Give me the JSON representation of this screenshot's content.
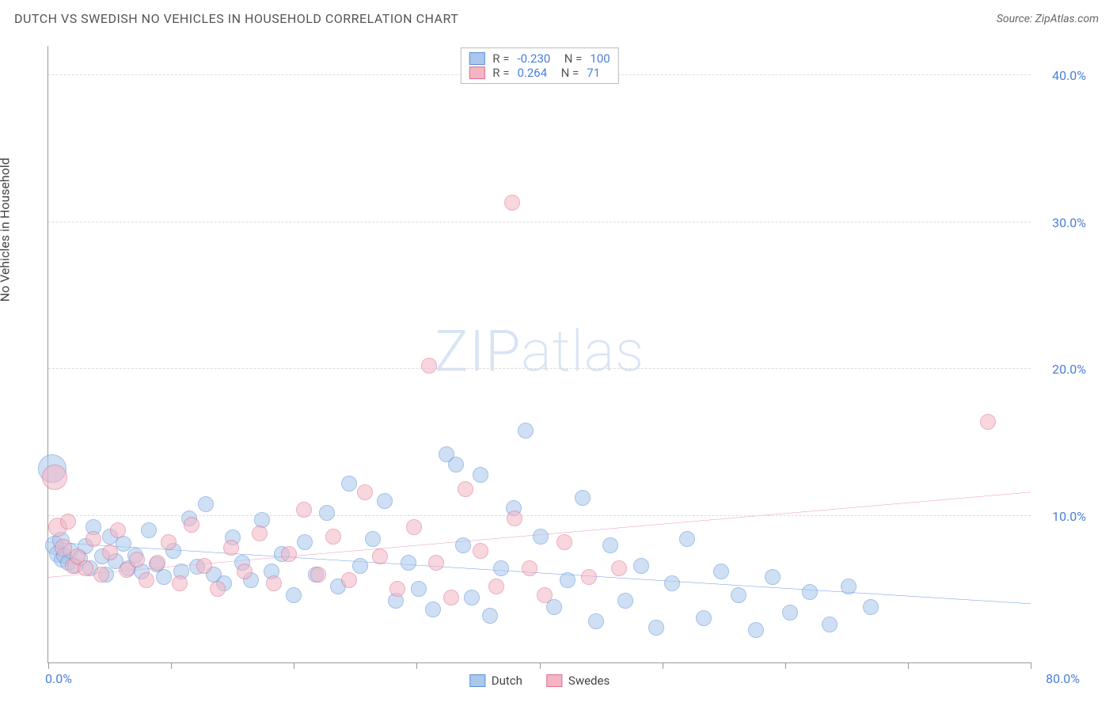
{
  "title": "DUTCH VS SWEDISH NO VEHICLES IN HOUSEHOLD CORRELATION CHART",
  "source_label": "Source: ZipAtlas.com",
  "y_axis_label": "No Vehicles in Household",
  "watermark": "ZIPatlas",
  "chart": {
    "type": "scatter",
    "xlim": [
      0,
      80
    ],
    "ylim": [
      0,
      42
    ],
    "x_ticks": [
      0,
      10,
      20,
      30,
      40,
      50,
      60,
      70,
      80
    ],
    "x_tick_labels": {
      "0": "0.0%",
      "80": "80.0%"
    },
    "y_ticks": [
      10,
      20,
      30,
      40
    ],
    "y_tick_labels": {
      "10": "10.0%",
      "20": "20.0%",
      "30": "30.0%",
      "40": "40.0%"
    },
    "background_color": "#ffffff",
    "grid_color": "#dddddd",
    "axis_color": "#999999",
    "tick_label_color": "#4a7fd8",
    "series": [
      {
        "name": "Dutch",
        "fill": "#a9c8ec",
        "stroke": "#5b8fd6",
        "fill_opacity": 0.55,
        "marker_radius": 10,
        "trend": {
          "x1": 0,
          "y1": 8.2,
          "x2": 80,
          "y2": 4.0,
          "color": "#2b6edc",
          "width": 2
        },
        "R": "-0.230",
        "N": "100",
        "points": [
          [
            0.3,
            13.2,
            18
          ],
          [
            0.5,
            8.0,
            12
          ],
          [
            0.8,
            7.4,
            11
          ],
          [
            1.0,
            8.3,
            11
          ],
          [
            1.1,
            7.0,
            10
          ],
          [
            1.3,
            7.3,
            10
          ],
          [
            1.6,
            6.8,
            10
          ],
          [
            1.8,
            7.6,
            10
          ],
          [
            2.2,
            6.6,
            10
          ],
          [
            2.6,
            7.1,
            10
          ],
          [
            3.0,
            7.9,
            10
          ],
          [
            3.4,
            6.4,
            10
          ],
          [
            3.7,
            9.2,
            10
          ],
          [
            4.4,
            7.2,
            10
          ],
          [
            4.7,
            6.0,
            10
          ],
          [
            5.0,
            8.6,
            10
          ],
          [
            5.5,
            6.9,
            10
          ],
          [
            6.1,
            8.1,
            10
          ],
          [
            6.5,
            6.4,
            10
          ],
          [
            7.1,
            7.3,
            10
          ],
          [
            7.6,
            6.2,
            10
          ],
          [
            8.2,
            9.0,
            10
          ],
          [
            8.8,
            6.7,
            10
          ],
          [
            9.4,
            5.8,
            10
          ],
          [
            10.2,
            7.6,
            10
          ],
          [
            10.8,
            6.2,
            10
          ],
          [
            11.5,
            9.8,
            10
          ],
          [
            12.1,
            6.5,
            10
          ],
          [
            12.8,
            10.8,
            10
          ],
          [
            13.5,
            6.0,
            10
          ],
          [
            14.3,
            5.4,
            10
          ],
          [
            15.0,
            8.5,
            10
          ],
          [
            15.8,
            6.8,
            10
          ],
          [
            16.5,
            5.6,
            10
          ],
          [
            17.4,
            9.7,
            10
          ],
          [
            18.2,
            6.2,
            10
          ],
          [
            19.0,
            7.4,
            10
          ],
          [
            20.0,
            4.6,
            10
          ],
          [
            20.9,
            8.2,
            10
          ],
          [
            21.8,
            6.0,
            10
          ],
          [
            22.7,
            10.2,
            10
          ],
          [
            23.6,
            5.2,
            10
          ],
          [
            24.5,
            12.2,
            10
          ],
          [
            25.4,
            6.6,
            10
          ],
          [
            26.4,
            8.4,
            10
          ],
          [
            27.4,
            11.0,
            10
          ],
          [
            28.3,
            4.2,
            10
          ],
          [
            29.3,
            6.8,
            10
          ],
          [
            30.2,
            5.0,
            10
          ],
          [
            31.3,
            3.6,
            10
          ],
          [
            32.4,
            14.2,
            10
          ],
          [
            33.2,
            13.5,
            10
          ],
          [
            33.8,
            8.0,
            10
          ],
          [
            34.5,
            4.4,
            10
          ],
          [
            35.2,
            12.8,
            10
          ],
          [
            36.0,
            3.2,
            10
          ],
          [
            36.9,
            6.4,
            10
          ],
          [
            37.9,
            10.5,
            10
          ],
          [
            38.9,
            15.8,
            10
          ],
          [
            40.1,
            8.6,
            10
          ],
          [
            41.2,
            3.8,
            10
          ],
          [
            42.3,
            5.6,
            10
          ],
          [
            43.5,
            11.2,
            10
          ],
          [
            44.6,
            2.8,
            10
          ],
          [
            45.8,
            8.0,
            10
          ],
          [
            47.0,
            4.2,
            10
          ],
          [
            48.3,
            6.6,
            10
          ],
          [
            49.5,
            2.4,
            10
          ],
          [
            50.8,
            5.4,
            10
          ],
          [
            52.0,
            8.4,
            10
          ],
          [
            53.4,
            3.0,
            10
          ],
          [
            54.8,
            6.2,
            10
          ],
          [
            56.2,
            4.6,
            10
          ],
          [
            57.6,
            2.2,
            10
          ],
          [
            59.0,
            5.8,
            10
          ],
          [
            60.4,
            3.4,
            10
          ],
          [
            62.0,
            4.8,
            10
          ],
          [
            63.6,
            2.6,
            10
          ],
          [
            65.2,
            5.2,
            10
          ],
          [
            67.0,
            3.8,
            10
          ]
        ]
      },
      {
        "name": "Swedes",
        "fill": "#f3b5c4",
        "stroke": "#df6f8f",
        "fill_opacity": 0.55,
        "marker_radius": 10,
        "trend": {
          "x1": 0,
          "y1": 5.8,
          "x2": 80,
          "y2": 11.6,
          "color": "#e86b8f",
          "width": 2
        },
        "R": "0.264",
        "N": "71",
        "points": [
          [
            0.5,
            12.6,
            16
          ],
          [
            0.8,
            9.2,
            12
          ],
          [
            1.2,
            7.8,
            11
          ],
          [
            1.6,
            9.6,
            10
          ],
          [
            2.0,
            6.6,
            10
          ],
          [
            2.4,
            7.2,
            10
          ],
          [
            3.0,
            6.4,
            10
          ],
          [
            3.7,
            8.4,
            10
          ],
          [
            4.3,
            6.0,
            10
          ],
          [
            5.0,
            7.5,
            10
          ],
          [
            5.7,
            9.0,
            10
          ],
          [
            6.4,
            6.3,
            10
          ],
          [
            7.2,
            7.0,
            10
          ],
          [
            8.0,
            5.6,
            10
          ],
          [
            8.9,
            6.8,
            10
          ],
          [
            9.8,
            8.2,
            10
          ],
          [
            10.7,
            5.4,
            10
          ],
          [
            11.7,
            9.4,
            10
          ],
          [
            12.7,
            6.6,
            10
          ],
          [
            13.8,
            5.0,
            10
          ],
          [
            14.9,
            7.8,
            10
          ],
          [
            16.0,
            6.2,
            10
          ],
          [
            17.2,
            8.8,
            10
          ],
          [
            18.4,
            5.4,
            10
          ],
          [
            19.6,
            7.4,
            10
          ],
          [
            20.8,
            10.4,
            10
          ],
          [
            22.0,
            6.0,
            10
          ],
          [
            23.2,
            8.6,
            10
          ],
          [
            24.5,
            5.6,
            10
          ],
          [
            25.8,
            11.6,
            10
          ],
          [
            27.0,
            7.2,
            10
          ],
          [
            28.4,
            5.0,
            10
          ],
          [
            29.8,
            9.2,
            10
          ],
          [
            31.0,
            20.2,
            10
          ],
          [
            31.6,
            6.8,
            10
          ],
          [
            32.8,
            4.4,
            10
          ],
          [
            34.0,
            11.8,
            10
          ],
          [
            35.2,
            7.6,
            10
          ],
          [
            36.5,
            5.2,
            10
          ],
          [
            37.8,
            31.3,
            10
          ],
          [
            38.0,
            9.8,
            10
          ],
          [
            39.2,
            6.4,
            10
          ],
          [
            40.4,
            4.6,
            10
          ],
          [
            42.0,
            8.2,
            10
          ],
          [
            44.0,
            5.8,
            10
          ],
          [
            46.5,
            6.4,
            10
          ],
          [
            76.5,
            16.4,
            10
          ]
        ]
      }
    ]
  },
  "legend_bottom": [
    {
      "label": "Dutch",
      "fill": "#a9c8ec",
      "stroke": "#5b8fd6"
    },
    {
      "label": "Swedes",
      "fill": "#f3b5c4",
      "stroke": "#df6f8f"
    }
  ]
}
